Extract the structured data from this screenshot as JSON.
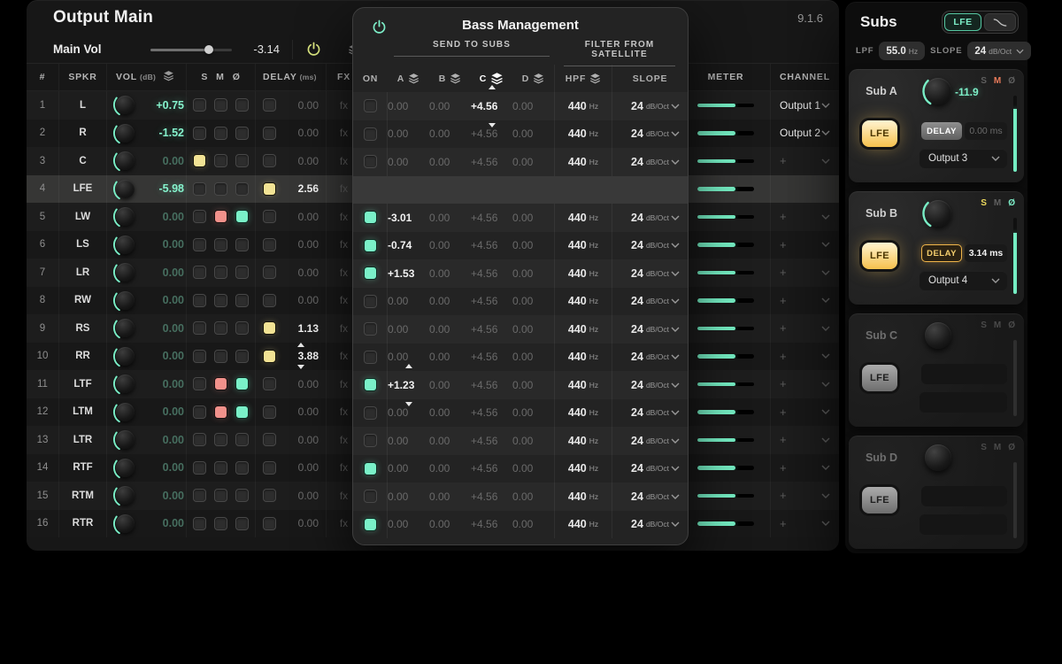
{
  "colors": {
    "accent_teal": "#7af0c8",
    "accent_yellow": "#f2e394",
    "accent_red": "#f2918b",
    "power_yellow": "#dde981",
    "value_teal": "#85f2cc",
    "meter_teal": "#74ecc2"
  },
  "icons": {
    "power": "power-icon",
    "layers": "layers-icon",
    "chevron_down": "chevron-down-icon",
    "phase_symbol": "Ø",
    "plus": "+",
    "lowpass_curve": "lowpass-curve-icon"
  },
  "main_window": {
    "title": "Output Main",
    "version": "9.1.6",
    "vol_strip": {
      "label": "Main Vol",
      "value": "-3.14",
      "slider_pct": 72
    },
    "headers": {
      "num": "#",
      "spkr": "SPKR",
      "vol": "VOL",
      "vol_unit": "(dB)",
      "solo": "S",
      "mute": "M",
      "phase": "Ø",
      "delay": "DELAY",
      "delay_unit": "(ms)",
      "fx": "FX",
      "meter": "METER",
      "channel": "CHANNEL"
    }
  },
  "speakers": [
    {
      "num": "1",
      "spkr": "L",
      "vol": "+0.75",
      "vol_bright": true,
      "solo": "off",
      "mute": "off",
      "phase": "off",
      "delay_on": false,
      "delay": "0.00",
      "delay_bright": false,
      "delay_stepper": false,
      "fx": "fx",
      "meter_pct": 67,
      "channel": "Output 1",
      "highlight": false,
      "bm": {
        "on": false,
        "a": "0.00",
        "a_bright": false,
        "a_stepper": false,
        "b": "0.00",
        "c": "+4.56",
        "c_bright": true,
        "c_stepper": true,
        "d": "0.00",
        "hpf": "440",
        "hpf_unit": "Hz",
        "slope": "24",
        "slope_unit": "dB/Oct"
      }
    },
    {
      "num": "2",
      "spkr": "R",
      "vol": "-1.52",
      "vol_bright": true,
      "solo": "off",
      "mute": "off",
      "phase": "off",
      "delay_on": false,
      "delay": "0.00",
      "delay_bright": false,
      "delay_stepper": false,
      "fx": "fx",
      "meter_pct": 67,
      "channel": "Output 2",
      "highlight": false,
      "bm": {
        "on": false,
        "a": "0.00",
        "a_bright": false,
        "a_stepper": false,
        "b": "0.00",
        "c": "+4.56",
        "c_bright": false,
        "c_stepper": false,
        "d": "0.00",
        "hpf": "440",
        "hpf_unit": "Hz",
        "slope": "24",
        "slope_unit": "dB/Oct"
      }
    },
    {
      "num": "3",
      "spkr": "C",
      "vol": "0.00",
      "vol_bright": false,
      "solo": "yellow",
      "mute": "off",
      "phase": "off",
      "delay_on": false,
      "delay": "0.00",
      "delay_bright": false,
      "delay_stepper": false,
      "fx": "fx",
      "meter_pct": 67,
      "channel": "+",
      "highlight": false,
      "bm": {
        "on": false,
        "a": "0.00",
        "a_bright": false,
        "a_stepper": false,
        "b": "0.00",
        "c": "+4.56",
        "c_bright": false,
        "c_stepper": false,
        "d": "0.00",
        "hpf": "440",
        "hpf_unit": "Hz",
        "slope": "24",
        "slope_unit": "dB/Oct"
      }
    },
    {
      "num": "4",
      "spkr": "LFE",
      "vol": "-5.98",
      "vol_bright": true,
      "solo": "off",
      "mute": "off",
      "phase": "off",
      "delay_on": true,
      "delay": "2.56",
      "delay_bright": true,
      "delay_stepper": false,
      "fx": "fx",
      "meter_pct": 67,
      "channel": null,
      "highlight": true,
      "bm": null
    },
    {
      "num": "5",
      "spkr": "LW",
      "vol": "0.00",
      "vol_bright": false,
      "solo": "off",
      "mute": "red",
      "phase": "teal",
      "delay_on": false,
      "delay": "0.00",
      "delay_bright": false,
      "delay_stepper": false,
      "fx": "fx",
      "meter_pct": 67,
      "channel": "+",
      "highlight": false,
      "bm": {
        "on": true,
        "a": "-3.01",
        "a_bright": true,
        "a_stepper": false,
        "b": "0.00",
        "c": "+4.56",
        "c_bright": false,
        "c_stepper": false,
        "d": "0.00",
        "hpf": "440",
        "hpf_unit": "Hz",
        "slope": "24",
        "slope_unit": "dB/Oct"
      }
    },
    {
      "num": "6",
      "spkr": "LS",
      "vol": "0.00",
      "vol_bright": false,
      "solo": "off",
      "mute": "off",
      "phase": "off",
      "delay_on": false,
      "delay": "0.00",
      "delay_bright": false,
      "delay_stepper": false,
      "fx": "fx",
      "meter_pct": 67,
      "channel": "+",
      "highlight": false,
      "bm": {
        "on": true,
        "a": "-0.74",
        "a_bright": true,
        "a_stepper": false,
        "b": "0.00",
        "c": "+4.56",
        "c_bright": false,
        "c_stepper": false,
        "d": "0.00",
        "hpf": "440",
        "hpf_unit": "Hz",
        "slope": "24",
        "slope_unit": "dB/Oct"
      }
    },
    {
      "num": "7",
      "spkr": "LR",
      "vol": "0.00",
      "vol_bright": false,
      "solo": "off",
      "mute": "off",
      "phase": "off",
      "delay_on": false,
      "delay": "0.00",
      "delay_bright": false,
      "delay_stepper": false,
      "fx": "fx",
      "meter_pct": 67,
      "channel": "+",
      "highlight": false,
      "bm": {
        "on": true,
        "a": "+1.53",
        "a_bright": true,
        "a_stepper": false,
        "b": "0.00",
        "c": "+4.56",
        "c_bright": false,
        "c_stepper": false,
        "d": "0.00",
        "hpf": "440",
        "hpf_unit": "Hz",
        "slope": "24",
        "slope_unit": "dB/Oct"
      }
    },
    {
      "num": "8",
      "spkr": "RW",
      "vol": "0.00",
      "vol_bright": false,
      "solo": "off",
      "mute": "off",
      "phase": "off",
      "delay_on": false,
      "delay": "0.00",
      "delay_bright": false,
      "delay_stepper": false,
      "fx": "fx",
      "meter_pct": 67,
      "channel": "+",
      "highlight": false,
      "bm": {
        "on": false,
        "a": "0.00",
        "a_bright": false,
        "a_stepper": false,
        "b": "0.00",
        "c": "+4.56",
        "c_bright": false,
        "c_stepper": false,
        "d": "0.00",
        "hpf": "440",
        "hpf_unit": "Hz",
        "slope": "24",
        "slope_unit": "dB/Oct"
      }
    },
    {
      "num": "9",
      "spkr": "RS",
      "vol": "0.00",
      "vol_bright": false,
      "solo": "off",
      "mute": "off",
      "phase": "off",
      "delay_on": true,
      "delay": "1.13",
      "delay_bright": true,
      "delay_stepper": false,
      "fx": "fx",
      "meter_pct": 67,
      "channel": "+",
      "highlight": false,
      "bm": {
        "on": false,
        "a": "0.00",
        "a_bright": false,
        "a_stepper": false,
        "b": "0.00",
        "c": "+4.56",
        "c_bright": false,
        "c_stepper": false,
        "d": "0.00",
        "hpf": "440",
        "hpf_unit": "Hz",
        "slope": "24",
        "slope_unit": "dB/Oct"
      }
    },
    {
      "num": "10",
      "spkr": "RR",
      "vol": "0.00",
      "vol_bright": false,
      "solo": "off",
      "mute": "off",
      "phase": "off",
      "delay_on": true,
      "delay": "3.88",
      "delay_bright": true,
      "delay_stepper": true,
      "fx": "fx",
      "meter_pct": 67,
      "channel": "+",
      "highlight": false,
      "bm": {
        "on": false,
        "a": "0.00",
        "a_bright": false,
        "a_stepper": false,
        "b": "0.00",
        "c": "+4.56",
        "c_bright": false,
        "c_stepper": false,
        "d": "0.00",
        "hpf": "440",
        "hpf_unit": "Hz",
        "slope": "24",
        "slope_unit": "dB/Oct"
      }
    },
    {
      "num": "11",
      "spkr": "LTF",
      "vol": "0.00",
      "vol_bright": false,
      "solo": "off",
      "mute": "red",
      "phase": "teal",
      "delay_on": false,
      "delay": "0.00",
      "delay_bright": false,
      "delay_stepper": false,
      "fx": "fx",
      "meter_pct": 67,
      "channel": "+",
      "highlight": false,
      "bm": {
        "on": true,
        "a": "+1.23",
        "a_bright": true,
        "a_stepper": true,
        "b": "0.00",
        "c": "+4.56",
        "c_bright": false,
        "c_stepper": false,
        "d": "0.00",
        "hpf": "440",
        "hpf_unit": "Hz",
        "slope": "24",
        "slope_unit": "dB/Oct"
      }
    },
    {
      "num": "12",
      "spkr": "LTM",
      "vol": "0.00",
      "vol_bright": false,
      "solo": "off",
      "mute": "red",
      "phase": "teal",
      "delay_on": false,
      "delay": "0.00",
      "delay_bright": false,
      "delay_stepper": false,
      "fx": "fx",
      "meter_pct": 67,
      "channel": "+",
      "highlight": false,
      "bm": {
        "on": false,
        "a": "0.00",
        "a_bright": false,
        "a_stepper": false,
        "b": "0.00",
        "c": "+4.56",
        "c_bright": false,
        "c_stepper": false,
        "d": "0.00",
        "hpf": "440",
        "hpf_unit": "Hz",
        "slope": "24",
        "slope_unit": "dB/Oct"
      }
    },
    {
      "num": "13",
      "spkr": "LTR",
      "vol": "0.00",
      "vol_bright": false,
      "solo": "off",
      "mute": "off",
      "phase": "off",
      "delay_on": false,
      "delay": "0.00",
      "delay_bright": false,
      "delay_stepper": false,
      "fx": "fx",
      "meter_pct": 67,
      "channel": "+",
      "highlight": false,
      "bm": {
        "on": false,
        "a": "0.00",
        "a_bright": false,
        "a_stepper": false,
        "b": "0.00",
        "c": "+4.56",
        "c_bright": false,
        "c_stepper": false,
        "d": "0.00",
        "hpf": "440",
        "hpf_unit": "Hz",
        "slope": "24",
        "slope_unit": "dB/Oct"
      }
    },
    {
      "num": "14",
      "spkr": "RTF",
      "vol": "0.00",
      "vol_bright": false,
      "solo": "off",
      "mute": "off",
      "phase": "off",
      "delay_on": false,
      "delay": "0.00",
      "delay_bright": false,
      "delay_stepper": false,
      "fx": "fx",
      "meter_pct": 67,
      "channel": "+",
      "highlight": false,
      "bm": {
        "on": true,
        "a": "0.00",
        "a_bright": false,
        "a_stepper": false,
        "b": "0.00",
        "c": "+4.56",
        "c_bright": false,
        "c_stepper": false,
        "d": "0.00",
        "hpf": "440",
        "hpf_unit": "Hz",
        "slope": "24",
        "slope_unit": "dB/Oct"
      }
    },
    {
      "num": "15",
      "spkr": "RTM",
      "vol": "0.00",
      "vol_bright": false,
      "solo": "off",
      "mute": "off",
      "phase": "off",
      "delay_on": false,
      "delay": "0.00",
      "delay_bright": false,
      "delay_stepper": false,
      "fx": "fx",
      "meter_pct": 67,
      "channel": "+",
      "highlight": false,
      "bm": {
        "on": false,
        "a": "0.00",
        "a_bright": false,
        "a_stepper": false,
        "b": "0.00",
        "c": "+4.56",
        "c_bright": false,
        "c_stepper": false,
        "d": "0.00",
        "hpf": "440",
        "hpf_unit": "Hz",
        "slope": "24",
        "slope_unit": "dB/Oct"
      }
    },
    {
      "num": "16",
      "spkr": "RTR",
      "vol": "0.00",
      "vol_bright": false,
      "solo": "off",
      "mute": "off",
      "phase": "off",
      "delay_on": false,
      "delay": "0.00",
      "delay_bright": false,
      "delay_stepper": false,
      "fx": "fx",
      "meter_pct": 67,
      "channel": "+",
      "highlight": false,
      "bm": {
        "on": true,
        "a": "0.00",
        "a_bright": false,
        "a_stepper": false,
        "b": "0.00",
        "c": "+4.56",
        "c_bright": false,
        "c_stepper": false,
        "d": "0.00",
        "hpf": "440",
        "hpf_unit": "Hz",
        "slope": "24",
        "slope_unit": "dB/Oct"
      }
    }
  ],
  "bass_panel": {
    "title": "Bass Management",
    "section_send": "SEND TO SUBS",
    "section_filter": "FILTER FROM SATELLITE",
    "headers": {
      "on": "ON",
      "a": "A",
      "b": "B",
      "c": "C",
      "d": "D",
      "hpf": "HPF",
      "slope": "SLOPE"
    },
    "highlighted_header": "c"
  },
  "subs_panel": {
    "title": "Subs",
    "lfe_toggle_label": "LFE",
    "lpf_label": "LPF",
    "lpf_value": "55.0",
    "lpf_unit": "Hz",
    "slope_label": "SLOPE",
    "slope_value": "24",
    "slope_unit": "dB/Oct",
    "smp_labels": {
      "solo": "S",
      "mute": "M",
      "phase": "Ø"
    },
    "cards": [
      {
        "name": "Sub A",
        "active": true,
        "lfe_on": true,
        "gain": "-11.9",
        "solo": false,
        "mute": true,
        "phase": false,
        "delay_label": "DELAY",
        "delay_on": false,
        "delay_value": "0.00 ms",
        "output": "Output 3",
        "meter_pct": 83
      },
      {
        "name": "Sub B",
        "active": true,
        "lfe_on": true,
        "gain": "",
        "solo": true,
        "mute": false,
        "phase": true,
        "delay_label": "DELAY",
        "delay_on": true,
        "delay_value": "3.14 ms",
        "output": "Output 4",
        "meter_pct": 80
      },
      {
        "name": "Sub C",
        "active": false,
        "lfe_on": false,
        "gain": "",
        "solo": false,
        "mute": false,
        "phase": false,
        "delay_label": "LFE",
        "delay_on": false,
        "delay_value": "",
        "output": "",
        "meter_pct": 0
      },
      {
        "name": "Sub D",
        "active": false,
        "lfe_on": false,
        "gain": "",
        "solo": false,
        "mute": false,
        "phase": false,
        "delay_label": "LFE",
        "delay_on": false,
        "delay_value": "",
        "output": "",
        "meter_pct": 0
      }
    ]
  }
}
